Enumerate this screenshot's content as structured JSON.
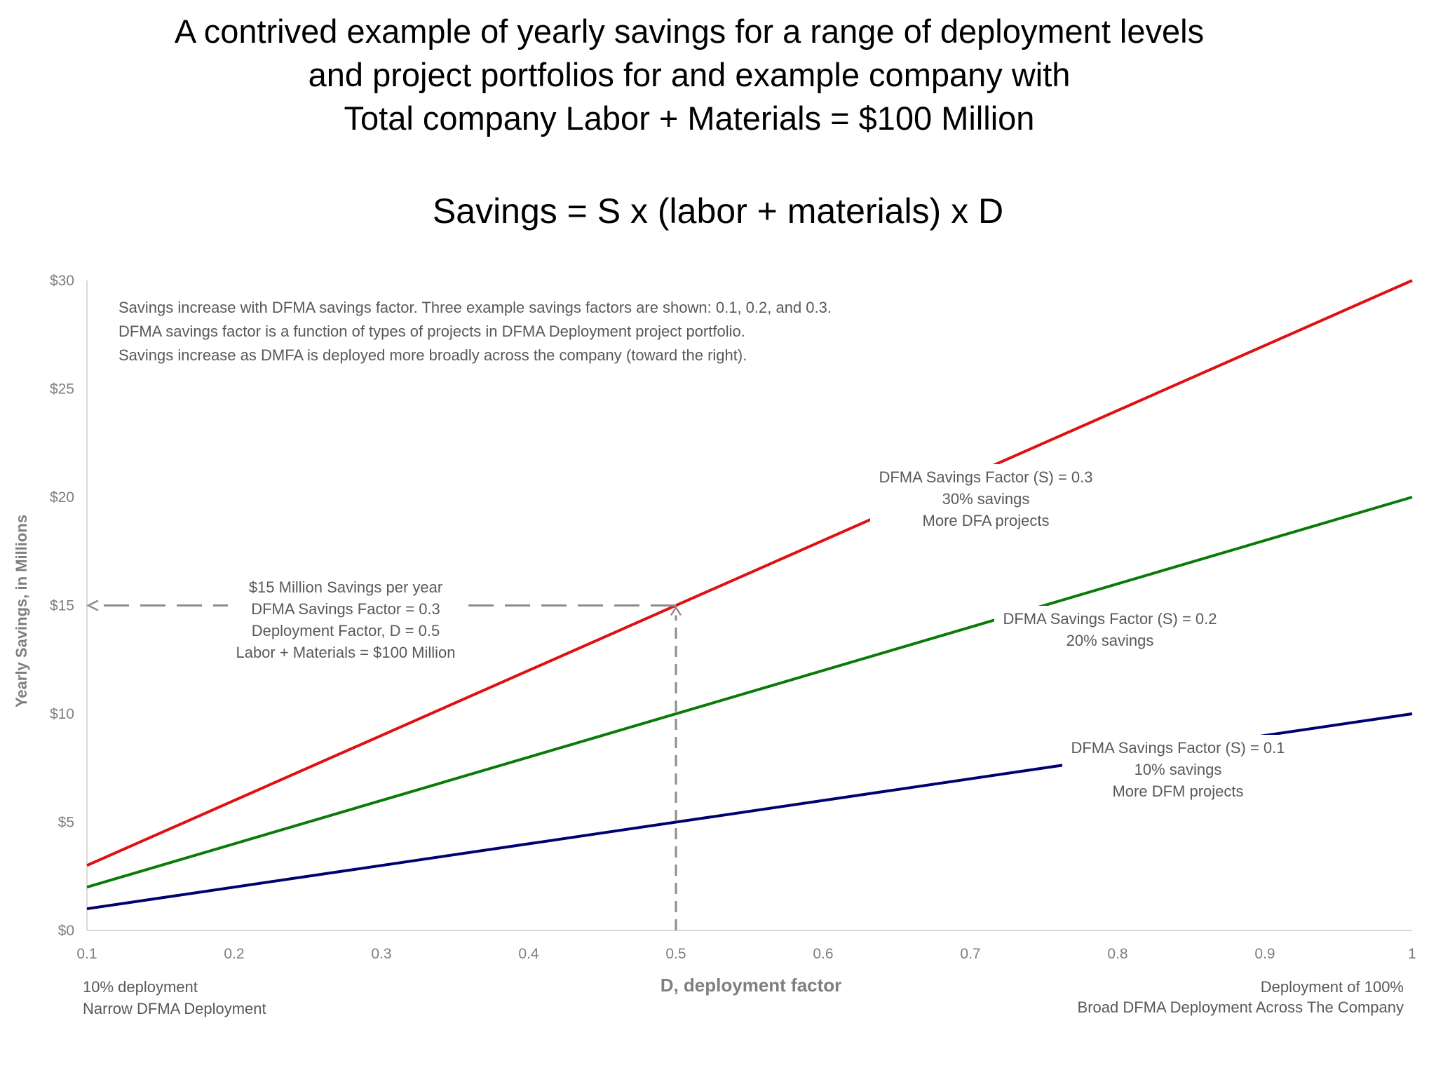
{
  "title": {
    "line1": "A contrived example of yearly savings for a range of deployment levels",
    "line2": "and project portfolios for and example company with",
    "line3": "Total company Labor + Materials = $100 Million"
  },
  "formula": "Savings = S x (labor + materials) x D",
  "notes": {
    "line1": "Savings increase with DFMA savings factor.  Three example savings factors are shown:  0.1, 0.2, and 0.3.",
    "line2": "DFMA savings factor is a function of types of projects in DFMA Deployment project portfolio.",
    "line3": "Savings increase as DMFA is deployed more broadly across the company (toward the right)."
  },
  "example": {
    "line1": "$15 Million Savings per year",
    "line2": "DFMA Savings Factor = 0.3",
    "line3": "Deployment Factor, D = 0.5",
    "line4": "Labor + Materials = $100 Million",
    "x": 0.5,
    "y": 15
  },
  "series_labels": {
    "s03": [
      "DFMA Savings Factor (S) = 0.3",
      "30% savings",
      "More DFA projects"
    ],
    "s02": [
      "DFMA Savings Factor (S) = 0.2",
      "20% savings"
    ],
    "s01": [
      "DFMA Savings Factor (S) = 0.1",
      "10% savings",
      "More DFM projects"
    ]
  },
  "footer": {
    "left1": "10% deployment",
    "left2": "Narrow DFMA Deployment",
    "right1": "Deployment of 100%",
    "right2": "Broad DFMA Deployment Across The Company"
  },
  "colors": {
    "s03": "#e01010",
    "s02": "#0a7a0a",
    "s01": "#000070",
    "axis": "#d9d9d9",
    "guide": "#8c8c8c"
  },
  "chart_data": {
    "type": "line",
    "xlabel": "D, deployment factor",
    "ylabel": "Yearly Savings, in Millions",
    "xlim": [
      0.1,
      1
    ],
    "ylim": [
      0,
      30
    ],
    "x_ticks": [
      "0.1",
      "0.2",
      "0.3",
      "0.4",
      "0.5",
      "0.6",
      "0.7",
      "0.8",
      "0.9",
      "1"
    ],
    "x_tick_values": [
      0.1,
      0.2,
      0.3,
      0.4,
      0.5,
      0.6,
      0.7,
      0.8,
      0.9,
      1
    ],
    "y_ticks": [
      "$0",
      "$5",
      "$10",
      "$15",
      "$20",
      "$25",
      "$30"
    ],
    "y_tick_values": [
      0,
      5,
      10,
      15,
      20,
      25,
      30
    ],
    "grid": false,
    "series": [
      {
        "key": "s03",
        "x": [
          0.1,
          1
        ],
        "values": [
          3,
          30
        ]
      },
      {
        "key": "s02",
        "x": [
          0.1,
          1
        ],
        "values": [
          2,
          20
        ]
      },
      {
        "key": "s01",
        "x": [
          0.1,
          1
        ],
        "values": [
          1,
          10
        ]
      }
    ]
  }
}
